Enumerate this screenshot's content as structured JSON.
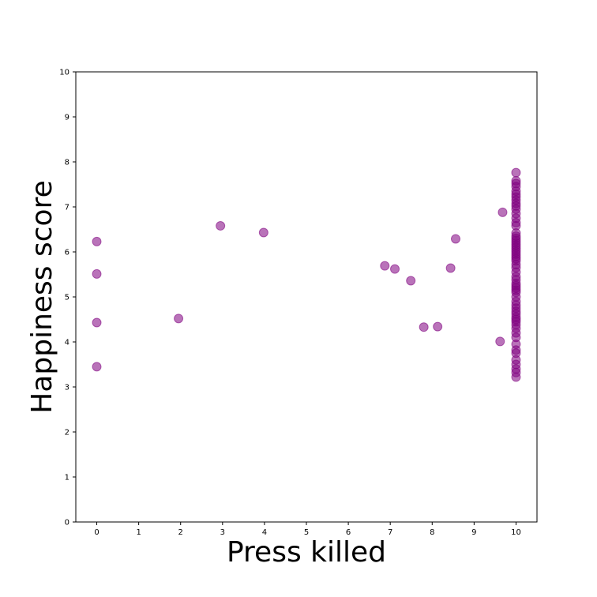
{
  "chart_data": {
    "type": "scatter",
    "title": "",
    "xlabel": "Press killed",
    "ylabel": "Happiness score",
    "xlim": [
      -0.5,
      10.5
    ],
    "ylim": [
      0,
      10
    ],
    "xticks": [
      "0",
      "1",
      "2",
      "3",
      "4",
      "5",
      "6",
      "7",
      "8",
      "9",
      "10"
    ],
    "yticks": [
      "0",
      "1",
      "2",
      "3",
      "4",
      "5",
      "6",
      "7",
      "8",
      "9",
      "10"
    ],
    "grid": false,
    "legend": "none",
    "marker_color": "#800080",
    "marker_alpha": 0.55,
    "series": [
      {
        "points": [
          [
            0,
            6.23
          ],
          [
            0,
            5.51
          ],
          [
            0,
            4.43
          ],
          [
            0,
            3.45
          ],
          [
            1.95,
            4.52
          ],
          [
            2.95,
            6.58
          ],
          [
            3.98,
            6.43
          ],
          [
            6.87,
            5.69
          ],
          [
            7.11,
            5.62
          ],
          [
            7.49,
            5.36
          ],
          [
            7.8,
            4.33
          ],
          [
            8.13,
            4.34
          ],
          [
            8.44,
            5.64
          ],
          [
            8.56,
            6.29
          ],
          [
            9.62,
            4.01
          ],
          [
            9.68,
            6.88
          ],
          [
            10,
            7.76
          ],
          [
            10,
            7.58
          ],
          [
            10,
            7.52
          ],
          [
            10,
            7.45
          ],
          [
            10,
            7.35
          ],
          [
            10,
            7.28
          ],
          [
            10,
            7.22
          ],
          [
            10,
            7.15
          ],
          [
            10,
            7.08
          ],
          [
            10,
            7.02
          ],
          [
            10,
            6.95
          ],
          [
            10,
            6.85
          ],
          [
            10,
            6.75
          ],
          [
            10,
            6.65
          ],
          [
            10,
            6.58
          ],
          [
            10,
            6.42
          ],
          [
            10,
            6.35
          ],
          [
            10,
            6.3
          ],
          [
            10,
            6.25
          ],
          [
            10,
            6.2
          ],
          [
            10,
            6.15
          ],
          [
            10,
            6.1
          ],
          [
            10,
            6.05
          ],
          [
            10,
            6.0
          ],
          [
            10,
            5.95
          ],
          [
            10,
            5.9
          ],
          [
            10,
            5.85
          ],
          [
            10,
            5.8
          ],
          [
            10,
            5.72
          ],
          [
            10,
            5.65
          ],
          [
            10,
            5.55
          ],
          [
            10,
            5.45
          ],
          [
            10,
            5.38
          ],
          [
            10,
            5.3
          ],
          [
            10,
            5.25
          ],
          [
            10,
            5.2
          ],
          [
            10,
            5.15
          ],
          [
            10,
            5.1
          ],
          [
            10,
            5.0
          ],
          [
            10,
            4.9
          ],
          [
            10,
            4.82
          ],
          [
            10,
            4.75
          ],
          [
            10,
            4.68
          ],
          [
            10,
            4.62
          ],
          [
            10,
            4.55
          ],
          [
            10,
            4.5
          ],
          [
            10,
            4.45
          ],
          [
            10,
            4.38
          ],
          [
            10,
            4.3
          ],
          [
            10,
            4.2
          ],
          [
            10,
            4.1
          ],
          [
            10,
            3.95
          ],
          [
            10,
            3.82
          ],
          [
            10,
            3.75
          ],
          [
            10,
            3.6
          ],
          [
            10,
            3.5
          ],
          [
            10,
            3.4
          ],
          [
            10,
            3.32
          ],
          [
            10,
            3.22
          ]
        ]
      }
    ]
  }
}
